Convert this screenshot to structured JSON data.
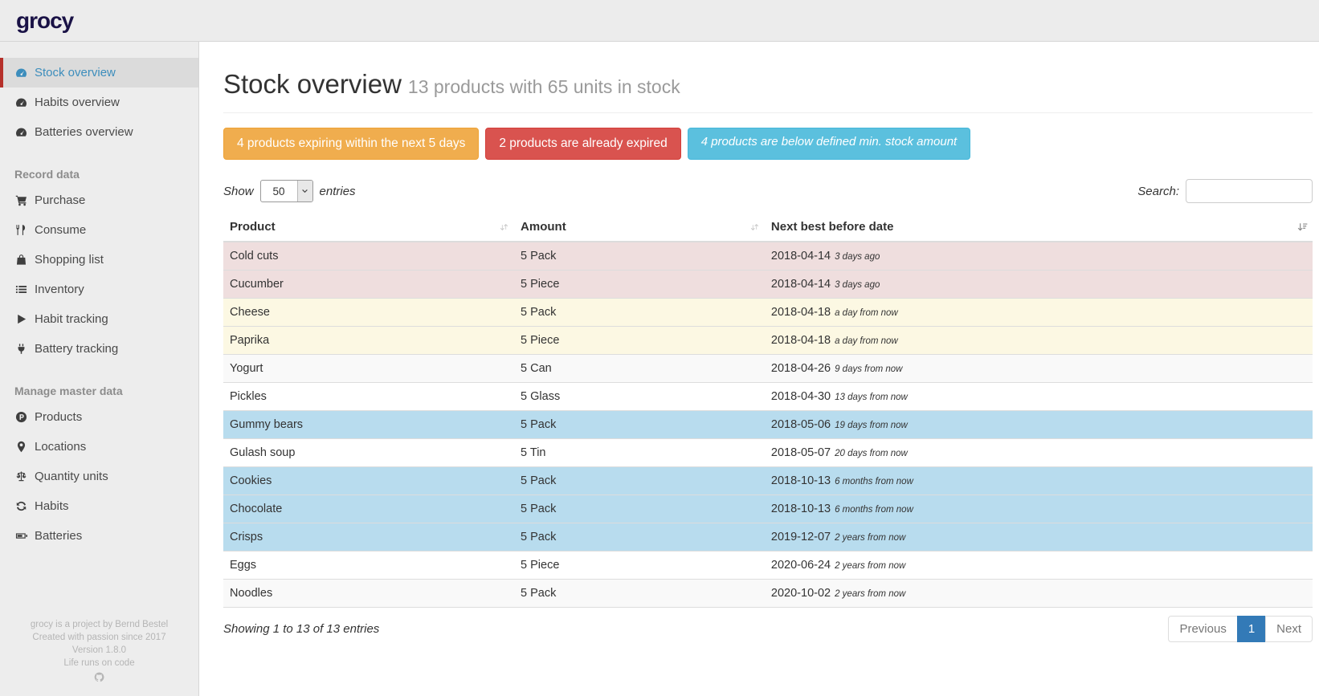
{
  "topbar": {
    "logo": "grocy"
  },
  "sidebar": {
    "sections": [
      {
        "header": "",
        "items": [
          {
            "label": "Stock overview",
            "icon": "tachometer",
            "active": true
          },
          {
            "label": "Habits overview",
            "icon": "tachometer",
            "active": false
          },
          {
            "label": "Batteries overview",
            "icon": "tachometer",
            "active": false
          }
        ]
      },
      {
        "header": "Record data",
        "items": [
          {
            "label": "Purchase",
            "icon": "cart",
            "active": false
          },
          {
            "label": "Consume",
            "icon": "cutlery",
            "active": false
          },
          {
            "label": "Shopping list",
            "icon": "shopping-bag",
            "active": false
          },
          {
            "label": "Inventory",
            "icon": "list",
            "active": false
          },
          {
            "label": "Habit tracking",
            "icon": "play",
            "active": false
          },
          {
            "label": "Battery tracking",
            "icon": "plug",
            "active": false
          }
        ]
      },
      {
        "header": "Manage master data",
        "items": [
          {
            "label": "Products",
            "icon": "product-hunt",
            "active": false
          },
          {
            "label": "Locations",
            "icon": "map-marker",
            "active": false
          },
          {
            "label": "Quantity units",
            "icon": "balance-scale",
            "active": false
          },
          {
            "label": "Habits",
            "icon": "refresh",
            "active": false
          },
          {
            "label": "Batteries",
            "icon": "battery",
            "active": false
          }
        ]
      }
    ],
    "footer_lines": [
      "grocy is a project by Bernd Bestel",
      "Created with passion since 2017",
      "Version 1.8.0",
      "Life runs on code"
    ],
    "footer_icon": "github"
  },
  "main": {
    "title": "Stock overview",
    "subtitle": "13 products with 65 units in stock",
    "alerts": [
      {
        "type": "warning",
        "label": "4 products expiring within the next 5 days"
      },
      {
        "type": "danger",
        "label": "2 products are already expired"
      },
      {
        "type": "info",
        "label": "4 products are below defined min. stock amount"
      }
    ],
    "controls": {
      "show_label": "Show",
      "page_length": "50",
      "entries_label": "entries",
      "search_label": "Search:",
      "search_value": ""
    },
    "table": {
      "columns": [
        "Product",
        "Amount",
        "Next best before date"
      ],
      "sorted_column": "Next best before date",
      "rows": [
        {
          "product": "Cold cuts",
          "amount": "5 Pack",
          "best_before": "2018-04-14",
          "relative": "3 days ago",
          "status": "expired"
        },
        {
          "product": "Cucumber",
          "amount": "5 Piece",
          "best_before": "2018-04-14",
          "relative": "3 days ago",
          "status": "expired"
        },
        {
          "product": "Cheese",
          "amount": "5 Pack",
          "best_before": "2018-04-18",
          "relative": "a day from now",
          "status": "expiring"
        },
        {
          "product": "Paprika",
          "amount": "5 Piece",
          "best_before": "2018-04-18",
          "relative": "a day from now",
          "status": "expiring"
        },
        {
          "product": "Yogurt",
          "amount": "5 Can",
          "best_before": "2018-04-26",
          "relative": "9 days from now",
          "status": "ok"
        },
        {
          "product": "Pickles",
          "amount": "5 Glass",
          "best_before": "2018-04-30",
          "relative": "13 days from now",
          "status": "ok"
        },
        {
          "product": "Gummy bears",
          "amount": "5 Pack",
          "best_before": "2018-05-06",
          "relative": "19 days from now",
          "status": "below_min"
        },
        {
          "product": "Gulash soup",
          "amount": "5 Tin",
          "best_before": "2018-05-07",
          "relative": "20 days from now",
          "status": "ok"
        },
        {
          "product": "Cookies",
          "amount": "5 Pack",
          "best_before": "2018-10-13",
          "relative": "6 months from now",
          "status": "below_min"
        },
        {
          "product": "Chocolate",
          "amount": "5 Pack",
          "best_before": "2018-10-13",
          "relative": "6 months from now",
          "status": "below_min"
        },
        {
          "product": "Crisps",
          "amount": "5 Pack",
          "best_before": "2019-12-07",
          "relative": "2 years from now",
          "status": "below_min"
        },
        {
          "product": "Eggs",
          "amount": "5 Piece",
          "best_before": "2020-06-24",
          "relative": "2 years from now",
          "status": "ok"
        },
        {
          "product": "Noodles",
          "amount": "5 Pack",
          "best_before": "2020-10-02",
          "relative": "2 years from now",
          "status": "ok"
        }
      ]
    },
    "footer": {
      "info": "Showing 1 to 13 of 13 entries",
      "pagination": {
        "previous": "Previous",
        "pages": [
          "1"
        ],
        "active_page": "1",
        "next": "Next"
      }
    }
  },
  "colors": {
    "logo": "#1a1246",
    "accent_red": "#b5302a",
    "active_link": "#3c8dbc",
    "warning": "#f0ad4e",
    "danger": "#d9534f",
    "info": "#5bc0de",
    "row_expired": "#efdede",
    "row_expiring": "#fcf8e3",
    "row_below_min": "#b8dcee",
    "pagination_active": "#337ab7"
  }
}
